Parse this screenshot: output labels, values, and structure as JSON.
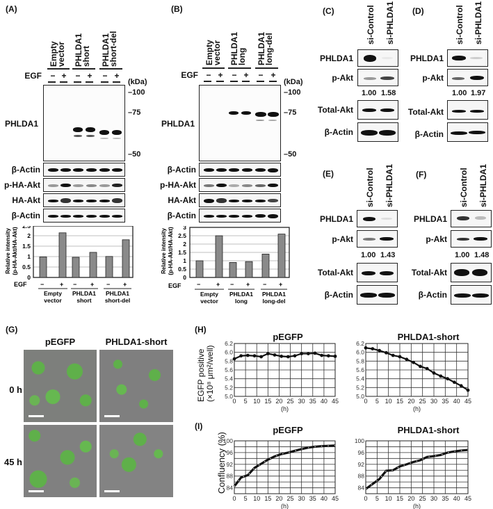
{
  "panels": {
    "A": {
      "label": "(A)",
      "lane_groups": [
        {
          "line1": "Empty",
          "line2": "vector"
        },
        {
          "line1": "PHLDA1",
          "line2": "short"
        },
        {
          "line1": "PHLDA1",
          "line2": "short-del"
        }
      ],
      "egf_label": "EGF",
      "egf_signs": [
        "−",
        "+",
        "−",
        "+",
        "−",
        "+"
      ],
      "kda_label": "(kDa)",
      "markers": [
        "100",
        "75",
        "50"
      ],
      "rows": [
        "PHLDA1",
        "β-Actin",
        "p-HA-Akt",
        "HA-Akt",
        "β-Actin"
      ],
      "chart_groups": [
        {
          "line1": "Empty",
          "line2": "vector"
        },
        {
          "line1": "PHLDA1",
          "line2": "short"
        },
        {
          "line1": "PHLDA1",
          "line2": "short-del"
        }
      ]
    },
    "B": {
      "label": "(B)",
      "lane_groups": [
        {
          "line1": "Empty",
          "line2": "vector"
        },
        {
          "line1": "PHLDA1",
          "line2": "long"
        },
        {
          "line1": "PHLDA1",
          "line2": "long-del"
        }
      ],
      "egf_label": "EGF",
      "egf_signs": [
        "−",
        "+",
        "−",
        "+",
        "−",
        "+"
      ],
      "kda_label": "(kDa)",
      "markers": [
        "100",
        "75",
        "50"
      ],
      "rows": [
        "PHLDA1",
        "β-Actin",
        "p-HA-Akt",
        "HA-Akt",
        "β-Actin"
      ],
      "chart_groups": [
        {
          "line1": "Empty",
          "line2": "vector"
        },
        {
          "line1": "PHLDA1",
          "line2": "long"
        },
        {
          "line1": "PHLDA1",
          "line2": "long-del"
        }
      ]
    },
    "C": {
      "label": "(C)",
      "lanes": [
        "si-Control",
        "si-PHLDA1"
      ],
      "rows": [
        "PHLDA1",
        "p-Akt",
        "Total-Akt",
        "β-Actin"
      ],
      "ratios": [
        "1.00",
        "1.58"
      ]
    },
    "D": {
      "label": "(D)",
      "lanes": [
        "si-Control",
        "si-PHLDA1"
      ],
      "rows": [
        "PHLDA1",
        "p-Akt",
        "Total-Akt",
        "β-Actin"
      ],
      "ratios": [
        "1.00",
        "1.97"
      ]
    },
    "E": {
      "label": "(E)",
      "lanes": [
        "si-Control",
        "si-PHLDA1"
      ],
      "rows": [
        "PHLDA1",
        "p-Akt",
        "Total-Akt",
        "β-Actin"
      ],
      "ratios": [
        "1.00",
        "1.43"
      ]
    },
    "F": {
      "label": "(F)",
      "lanes": [
        "si-Control",
        "si-PHLDA1"
      ],
      "rows": [
        "PHLDA1",
        "p-Akt",
        "Total-Akt",
        "β-Actin"
      ],
      "ratios": [
        "1.00",
        "1.48"
      ]
    },
    "G": {
      "label": "(G)",
      "columns": [
        "pEGFP",
        "PHLDA1-short"
      ],
      "rows": [
        "0 h",
        "45 h"
      ]
    },
    "H": {
      "label": "(H)",
      "ylabel_1": "EGFP positive",
      "ylabel_2": "(×10⁸ μm²/well)",
      "xlabel": "(h)"
    },
    "I": {
      "label": "(I)",
      "ylabel": "Confluency (%)",
      "xlabel": "(h)"
    }
  },
  "chart_data": [
    {
      "id": "A-bar",
      "type": "bar",
      "ylabel": "Relative intensity (p-HA-Akt/HA-Akt)",
      "xlabel": "EGF",
      "categories": [
        "Empty vector −",
        "Empty vector +",
        "PHLDA1 short −",
        "PHLDA1 short +",
        "PHLDA1 short-del −",
        "PHLDA1 short-del +"
      ],
      "values": [
        1.0,
        2.17,
        0.98,
        1.22,
        1.02,
        1.83
      ],
      "ylim": [
        0,
        2.5
      ],
      "yticks": [
        "0",
        "0.5",
        "1",
        "1.5",
        "2",
        "2.5"
      ],
      "grid": true
    },
    {
      "id": "B-bar",
      "type": "bar",
      "ylabel": "Relative intensity (p-HA-Akt/HA-Akt)",
      "xlabel": "EGF",
      "categories": [
        "Empty vector −",
        "Empty vector +",
        "PHLDA1 long −",
        "PHLDA1 long +",
        "PHLDA1 long-del −",
        "PHLDA1 long-del +"
      ],
      "values": [
        1.0,
        2.5,
        0.9,
        0.95,
        1.4,
        2.6
      ],
      "ylim": [
        0,
        3
      ],
      "yticks": [
        "0",
        "0.5",
        "1",
        "1.5",
        "2",
        "2.5",
        "3"
      ],
      "grid": true
    },
    {
      "id": "H-pEGFP",
      "type": "line",
      "title": "pEGFP",
      "ylabel": "EGFP positive (×10⁸ μm²/well)",
      "xlabel": "(h)",
      "x": [
        0,
        3,
        6,
        9,
        12,
        15,
        18,
        21,
        24,
        27,
        30,
        33,
        36,
        39,
        42,
        45
      ],
      "values": [
        5.85,
        5.92,
        5.93,
        5.92,
        5.9,
        5.97,
        5.94,
        5.91,
        5.9,
        5.92,
        5.97,
        5.97,
        5.98,
        5.93,
        5.92,
        5.91
      ],
      "ylim": [
        5.0,
        6.2
      ],
      "yticks": [
        "5.0",
        "5.2",
        "5.4",
        "5.6",
        "5.8",
        "6.0",
        "6.2"
      ],
      "xticks": [
        "0",
        "5",
        "10",
        "15",
        "20",
        "25",
        "30",
        "35",
        "40",
        "45"
      ],
      "grid": true
    },
    {
      "id": "H-PHLDA1-short",
      "type": "line",
      "title": "PHLDA1-short",
      "xlabel": "(h)",
      "x": [
        0,
        3,
        6,
        9,
        12,
        15,
        18,
        21,
        24,
        27,
        30,
        33,
        36,
        39,
        42,
        45
      ],
      "values": [
        6.1,
        6.08,
        6.04,
        5.99,
        5.93,
        5.9,
        5.84,
        5.77,
        5.68,
        5.63,
        5.53,
        5.46,
        5.4,
        5.32,
        5.24,
        5.14
      ],
      "ylim": [
        5.0,
        6.2
      ],
      "yticks": [
        "5.0",
        "5.2",
        "5.4",
        "5.6",
        "5.8",
        "6.0",
        "6.2"
      ],
      "xticks": [
        "0",
        "5",
        "10",
        "15",
        "20",
        "25",
        "30",
        "35",
        "40",
        "45"
      ],
      "grid": true
    },
    {
      "id": "I-pEGFP",
      "type": "line",
      "title": "pEGFP",
      "ylabel": "Confluency (%)",
      "xlabel": "(h)",
      "x": [
        0,
        3,
        6,
        9,
        12,
        15,
        18,
        21,
        24,
        27,
        30,
        33,
        36,
        39,
        42,
        45
      ],
      "values": [
        84.5,
        87.5,
        88.3,
        90.8,
        92.2,
        93.6,
        94.7,
        95.5,
        96.0,
        96.6,
        97.2,
        97.7,
        98.0,
        98.2,
        98.3,
        98.4
      ],
      "ylim": [
        82,
        100
      ],
      "yticks": [
        "84",
        "88",
        "92",
        "96",
        "100"
      ],
      "xticks": [
        "0",
        "5",
        "10",
        "15",
        "20",
        "25",
        "30",
        "35",
        "40",
        "45"
      ],
      "grid": true
    },
    {
      "id": "I-PHLDA1-short",
      "type": "line",
      "title": "PHLDA1-short",
      "xlabel": "(h)",
      "x": [
        0,
        3,
        6,
        9,
        12,
        15,
        18,
        21,
        24,
        27,
        30,
        33,
        36,
        39,
        42,
        45
      ],
      "values": [
        83.6,
        85.3,
        87.0,
        89.8,
        90.0,
        91.3,
        92.0,
        92.8,
        93.4,
        94.5,
        94.8,
        95.2,
        96.0,
        96.4,
        96.7,
        96.9
      ],
      "ylim": [
        82,
        100
      ],
      "yticks": [
        "84",
        "88",
        "92",
        "96",
        "100"
      ],
      "xticks": [
        "0",
        "5",
        "10",
        "15",
        "20",
        "25",
        "30",
        "35",
        "40",
        "45"
      ],
      "grid": true
    }
  ]
}
